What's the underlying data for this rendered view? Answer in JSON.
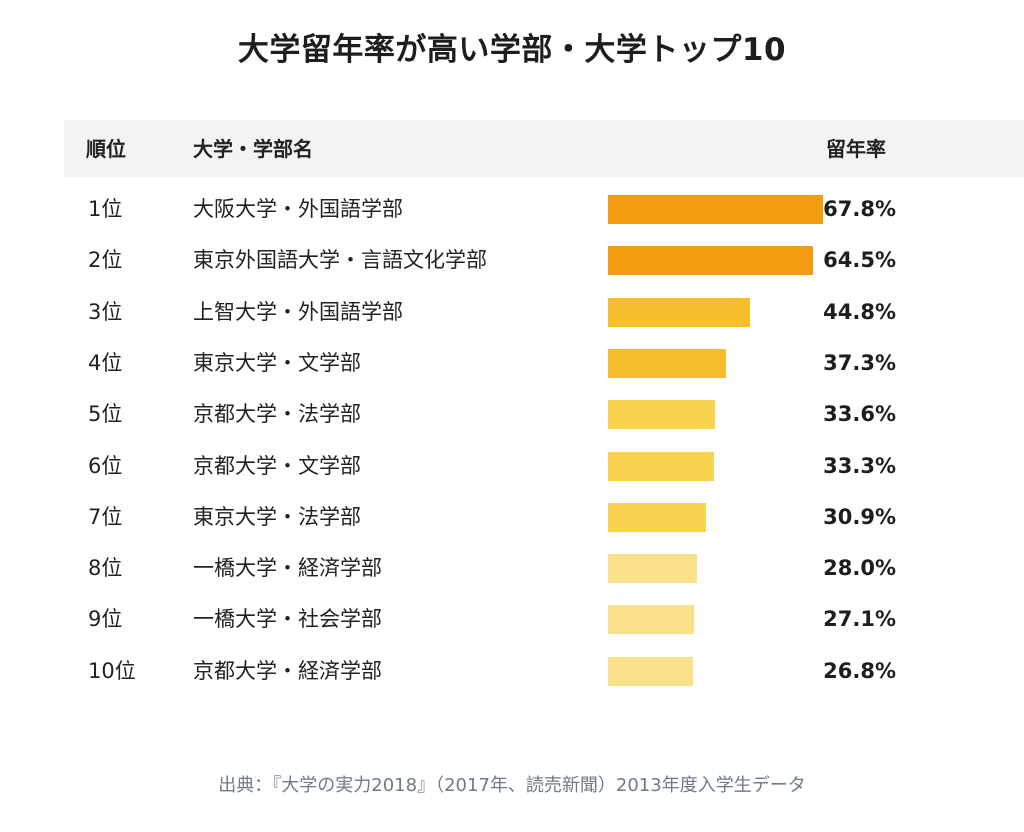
{
  "chart_data": {
    "type": "bar",
    "title": "大学留年率が高い学部・大学トップ10",
    "headers": {
      "rank": "順位",
      "name": "大学・学部名",
      "rate": "留年率"
    },
    "categories": [
      "大阪大学・外国語学部",
      "東京外国語大学・言語文化学部",
      "上智大学・外国語学部",
      "東京大学・文学部",
      "京都大学・法学部",
      "京都大学・文学部",
      "東京大学・法学部",
      "一橋大学・経済学部",
      "一橋大学・社会学部",
      "京都大学・経済学部"
    ],
    "ranks": [
      "1位",
      "2位",
      "3位",
      "4位",
      "5位",
      "6位",
      "7位",
      "8位",
      "9位",
      "10位"
    ],
    "values": [
      67.8,
      64.5,
      44.8,
      37.3,
      33.6,
      33.3,
      30.9,
      28.0,
      27.1,
      26.8
    ],
    "value_labels": [
      "67.8%",
      "64.5%",
      "44.8%",
      "37.3%",
      "33.6%",
      "33.3%",
      "30.9%",
      "28.0%",
      "27.1%",
      "26.8%"
    ],
    "bar_colors": [
      "#f29c11",
      "#f29c11",
      "#f8bd2a",
      "#f8bd2a",
      "#f8d34e",
      "#f8d34e",
      "#f8d34e",
      "#fbe28a",
      "#fbe28a",
      "#fbe28a"
    ],
    "source": "出典：『大学の実力2018』（2017年、読売新聞）2013年度入学生データ"
  }
}
